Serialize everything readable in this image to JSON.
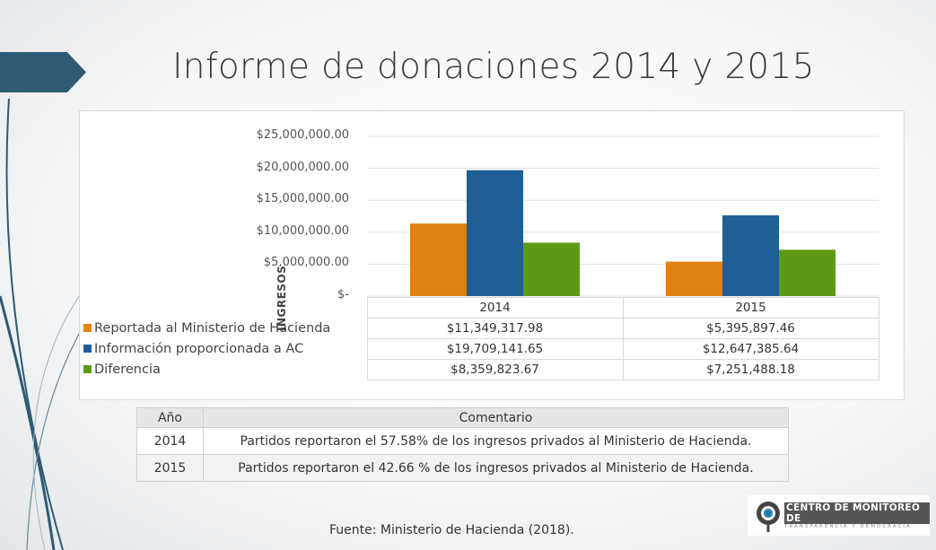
{
  "title": "Informe de donaciones 2014 y 2015",
  "chart_data": {
    "type": "bar",
    "categories": [
      "2014",
      "2015"
    ],
    "ylabel": "INGRESOS",
    "ylim": [
      0,
      25000000
    ],
    "yticks": [
      "$25,000,000.00",
      "$20,000,000.00",
      "$15,000,000.00",
      "$10,000,000.00",
      "$5,000,000.00",
      "$-"
    ],
    "grid": true,
    "legend": "data-table",
    "series": [
      {
        "name": "Reportada al Ministerio de Hacienda",
        "color": "#e0820f",
        "values": [
          11349317.98,
          5395897.46
        ],
        "labels": [
          "$11,349,317.98",
          "$5,395,897.46"
        ]
      },
      {
        "name": "Información proporcionada a AC",
        "color": "#1f5f96",
        "values": [
          19709141.65,
          12647385.64
        ],
        "labels": [
          "$19,709,141.65",
          "$12,647,385.64"
        ]
      },
      {
        "name": "Diferencia",
        "color": "#5d9b16",
        "values": [
          8359823.67,
          7251488.18
        ],
        "labels": [
          "$8,359,823.67",
          "$7,251,488.18"
        ]
      }
    ]
  },
  "comments": {
    "headers": [
      "Año",
      "Comentario"
    ],
    "rows": [
      {
        "year": "2014",
        "text": "Partidos reportaron el 57.58% de los ingresos privados al Ministerio de Hacienda."
      },
      {
        "year": "2015",
        "text": "Partidos reportaron el  42.66 % de los ingresos privados al Ministerio de Hacienda."
      }
    ]
  },
  "source": "Fuente: Ministerio de Hacienda (2018).",
  "logo": {
    "line1": "CENTRO DE MONITOREO DE",
    "line2": "TRANSPARENCIA Y DEMOCRACIA"
  }
}
